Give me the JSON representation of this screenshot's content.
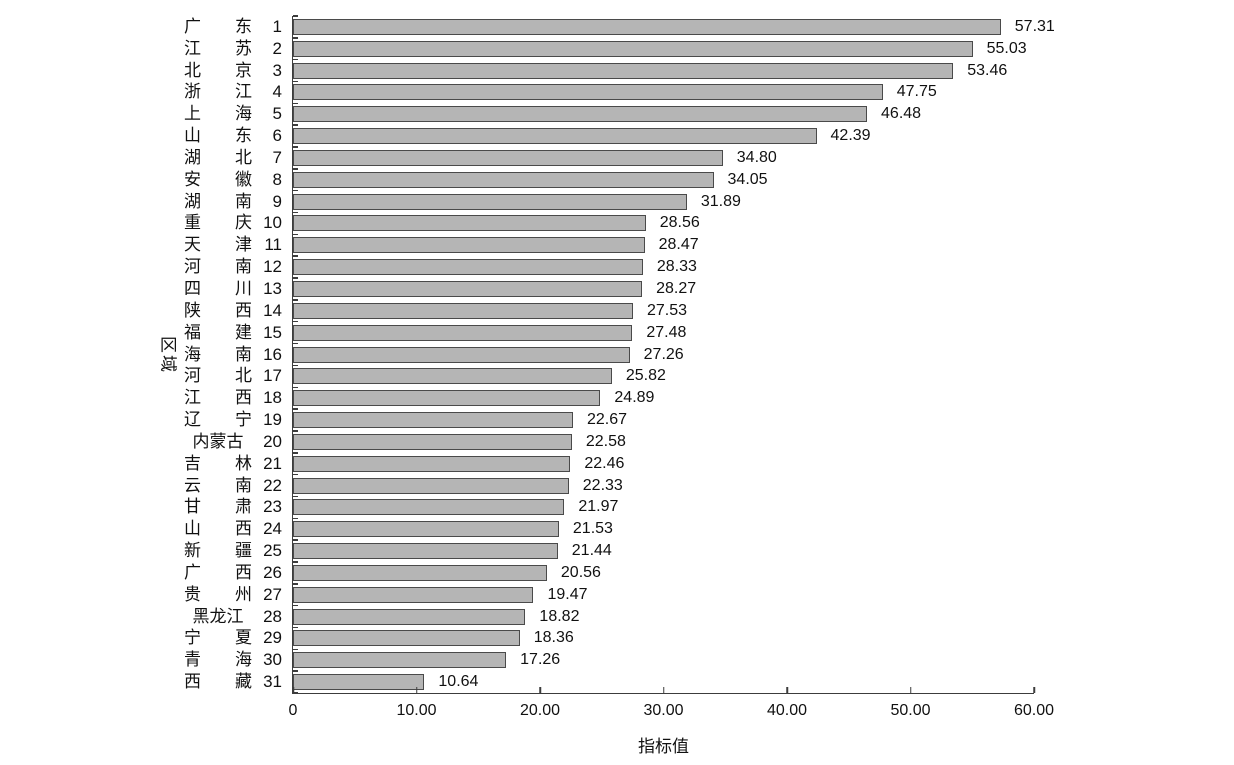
{
  "chart_data": {
    "type": "bar",
    "orientation": "horizontal",
    "title": "",
    "xlabel": "指标值",
    "ylabel": "区域",
    "xlim": [
      0,
      60
    ],
    "xticks": [
      0,
      10,
      20,
      30,
      40,
      50,
      60
    ],
    "xtick_labels": [
      "0",
      "10.00",
      "20.00",
      "30.00",
      "40.00",
      "50.00",
      "60.00"
    ],
    "grid": false,
    "legend": null,
    "bar_color": "#b5b5b5",
    "bar_border_color": "#4a4a4a",
    "categories": [
      "广东",
      "江苏",
      "北京",
      "浙江",
      "上海",
      "山东",
      "湖北",
      "安徽",
      "湖南",
      "重庆",
      "天津",
      "河南",
      "四川",
      "陕西",
      "福建",
      "海南",
      "河北",
      "江西",
      "辽宁",
      "内蒙古",
      "吉林",
      "云南",
      "甘肃",
      "山西",
      "新疆",
      "广西",
      "贵州",
      "黑龙江",
      "宁夏",
      "青海",
      "西藏"
    ],
    "ranks": [
      1,
      2,
      3,
      4,
      5,
      6,
      7,
      8,
      9,
      10,
      11,
      12,
      13,
      14,
      15,
      16,
      17,
      18,
      19,
      20,
      21,
      22,
      23,
      24,
      25,
      26,
      27,
      28,
      29,
      30,
      31
    ],
    "values": [
      57.31,
      55.03,
      53.46,
      47.75,
      46.48,
      42.39,
      34.8,
      34.05,
      31.89,
      28.56,
      28.47,
      28.33,
      28.27,
      27.53,
      27.48,
      27.26,
      25.82,
      24.89,
      22.67,
      22.58,
      22.46,
      22.33,
      21.97,
      21.53,
      21.44,
      20.56,
      19.47,
      18.82,
      18.36,
      17.26,
      10.64
    ],
    "value_labels": [
      "57.31",
      "55.03",
      "53.46",
      "47.75",
      "46.48",
      "42.39",
      "34.80",
      "34.05",
      "31.89",
      "28.56",
      "28.47",
      "28.33",
      "28.27",
      "27.53",
      "27.48",
      "27.26",
      "25.82",
      "24.89",
      "22.67",
      "22.58",
      "22.46",
      "22.33",
      "21.97",
      "21.53",
      "21.44",
      "20.56",
      "19.47",
      "18.82",
      "18.36",
      "17.26",
      "10.64"
    ]
  }
}
